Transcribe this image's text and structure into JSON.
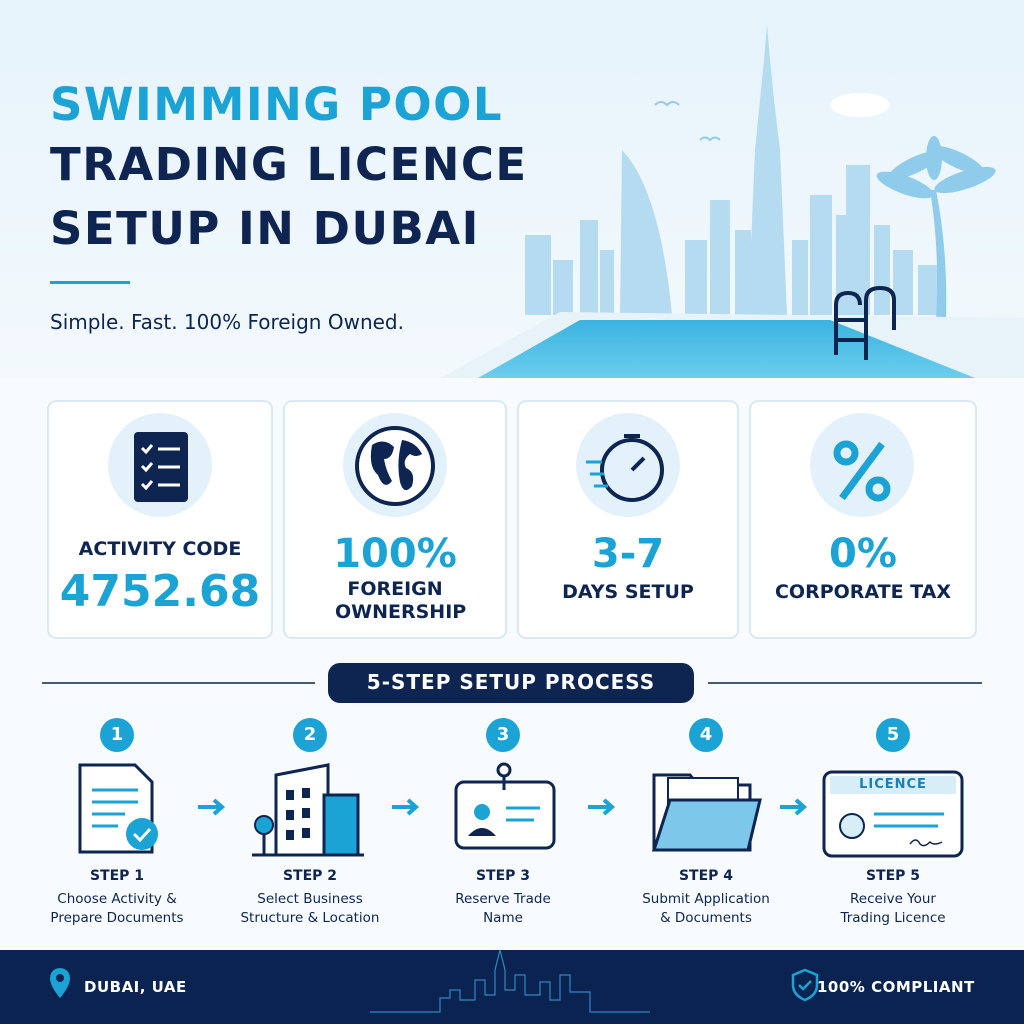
{
  "header": {
    "title_lines": [
      "SWIMMING POOL",
      "TRADING LICENCE",
      "SETUP IN DUBAI"
    ],
    "tagline": "Simple. Fast. 100% Foreign Owned."
  },
  "highlights": [
    {
      "label": "ACTIVITY CODE",
      "value": "4752.68"
    },
    {
      "value": "100%",
      "label": "FOREIGN OWNERSHIP"
    },
    {
      "value": "3-7",
      "label": "DAYS SETUP"
    },
    {
      "value": "0%",
      "label": "CORPORATE TAX"
    }
  ],
  "process": {
    "title": "5-STEP SETUP PROCESS",
    "steps": [
      {
        "number": "1",
        "label": "STEP 1",
        "description_lines": [
          "Choose Activity &",
          "Prepare Documents"
        ]
      },
      {
        "number": "2",
        "label": "STEP 2",
        "description_lines": [
          "Select Business",
          "Structure & Location"
        ]
      },
      {
        "number": "3",
        "label": "STEP 3",
        "description_lines": [
          "Reserve Trade",
          "Name"
        ]
      },
      {
        "number": "4",
        "label": "STEP 4",
        "description_lines": [
          "Submit Application",
          "& Documents"
        ]
      },
      {
        "number": "5",
        "label": "STEP 5",
        "description_lines": [
          "Receive Your",
          "Trading Licence"
        ]
      }
    ]
  },
  "licence_badge": "LICENCE",
  "footer": {
    "location": "DUBAI, UAE",
    "compliance": "100% COMPLIANT"
  }
}
